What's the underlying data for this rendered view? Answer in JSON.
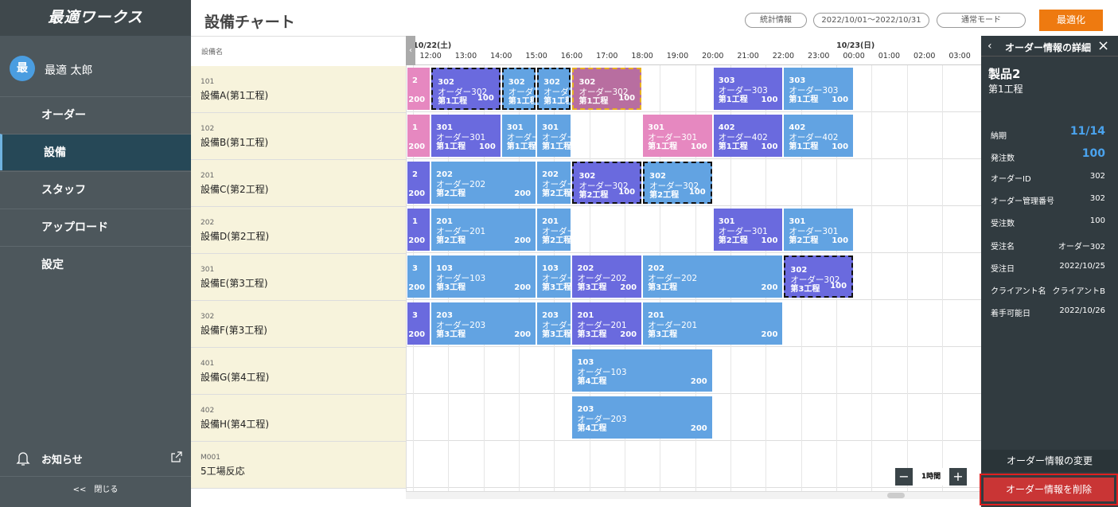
{
  "sidebar": {
    "logo": "最適ワークス",
    "avatar": "最",
    "user": "最適 太郎",
    "menu": [
      "オーダー",
      "設備",
      "スタッフ",
      "アップロード",
      "設定"
    ],
    "notice": "お知らせ",
    "close": "<<　閉じる"
  },
  "header": {
    "title": "設備チャート",
    "buttons": [
      "統計情報",
      "2022/10/01～2022/10/31",
      "通常モード"
    ],
    "optimize": "最適化"
  },
  "chart_data": {
    "type": "gantt",
    "column_header": "設備名",
    "rows": [
      {
        "code": "101",
        "name": "設備A(第1工程)"
      },
      {
        "code": "102",
        "name": "設備B(第1工程)"
      },
      {
        "code": "201",
        "name": "設備C(第2工程)"
      },
      {
        "code": "202",
        "name": "設備D(第2工程)"
      },
      {
        "code": "301",
        "name": "設備E(第3工程)"
      },
      {
        "code": "302",
        "name": "設備F(第3工程)"
      },
      {
        "code": "401",
        "name": "設備G(第4工程)"
      },
      {
        "code": "402",
        "name": "設備H(第4工程)"
      },
      {
        "code": "M001",
        "name": "5工場反応"
      }
    ],
    "xlim": [
      11.32,
      27.63
    ],
    "dates": [
      {
        "value": 12,
        "label": "10/22(土)"
      },
      {
        "value": 24,
        "label": "10/23(日)"
      }
    ],
    "xticks": [
      {
        "value": 12,
        "label": "12:00"
      },
      {
        "value": 13,
        "label": "13:00"
      },
      {
        "value": 14,
        "label": "14:00"
      },
      {
        "value": 15,
        "label": "15:00"
      },
      {
        "value": 16,
        "label": "16:00"
      },
      {
        "value": 17,
        "label": "17:00"
      },
      {
        "value": 18,
        "label": "18:00"
      },
      {
        "value": 19,
        "label": "19:00"
      },
      {
        "value": 20,
        "label": "20:00"
      },
      {
        "value": 21,
        "label": "21:00"
      },
      {
        "value": 22,
        "label": "22:00"
      },
      {
        "value": 23,
        "label": "23:00"
      },
      {
        "value": 24,
        "label": "00:00"
      },
      {
        "value": 25,
        "label": "01:00"
      },
      {
        "value": 26,
        "label": "02:00"
      },
      {
        "value": 27,
        "label": "03:00"
      }
    ],
    "bars": [
      {
        "row": 0,
        "start": 11.32,
        "end": 12,
        "color": "#e688c0",
        "code": "2",
        "qty": 200
      },
      {
        "row": 0,
        "start": 12,
        "end": 14,
        "color": "#6a6ade",
        "border": "#111",
        "code": "302",
        "order": "オーダー302",
        "process": "第1工程",
        "qty": 100
      },
      {
        "row": 0,
        "start": 14,
        "end": 15,
        "color": "#62a3e2",
        "border": "#111",
        "code": "302",
        "order": "オーダー302",
        "process": "第1工程"
      },
      {
        "row": 0,
        "start": 15,
        "end": 16,
        "color": "#62a3e2",
        "border": "#111",
        "code": "302",
        "order": "オーダー302",
        "process": "第1工程"
      },
      {
        "row": 0,
        "start": 16,
        "end": 18,
        "color": "#b86ea0",
        "border": "#e8b020",
        "code": "302",
        "order": "オーダー302",
        "process": "第1工程",
        "qty": 100
      },
      {
        "row": 0,
        "start": 20,
        "end": 22,
        "color": "#6a6ade",
        "code": "303",
        "order": "オーダー303",
        "process": "第1工程",
        "qty": 100
      },
      {
        "row": 0,
        "start": 22,
        "end": 24,
        "color": "#62a3e2",
        "code": "303",
        "order": "オーダー303",
        "process": "第1工程",
        "qty": 100
      },
      {
        "row": 1,
        "start": 11.32,
        "end": 12,
        "color": "#e688c0",
        "code": "1",
        "qty": 200
      },
      {
        "row": 1,
        "start": 12,
        "end": 14,
        "color": "#6a6ade",
        "code": "301",
        "order": "オーダー301",
        "process": "第1工程",
        "qty": 100
      },
      {
        "row": 1,
        "start": 14,
        "end": 15,
        "color": "#62a3e2",
        "code": "301",
        "order": "オーダー301",
        "process": "第1工程"
      },
      {
        "row": 1,
        "start": 15,
        "end": 16,
        "color": "#62a3e2",
        "code": "301",
        "order": "オーダー301",
        "process": "第1工程"
      },
      {
        "row": 1,
        "start": 18,
        "end": 20,
        "color": "#e688c0",
        "code": "301",
        "order": "オーダー301",
        "process": "第1工程",
        "qty": 100
      },
      {
        "row": 1,
        "start": 20,
        "end": 22,
        "color": "#6a6ade",
        "code": "402",
        "order": "オーダー402",
        "process": "第1工程",
        "qty": 100
      },
      {
        "row": 1,
        "start": 22,
        "end": 24,
        "color": "#62a3e2",
        "code": "402",
        "order": "オーダー402",
        "process": "第1工程",
        "qty": 100
      },
      {
        "row": 2,
        "start": 11.32,
        "end": 12,
        "color": "#6a6ade",
        "code": "2",
        "qty": 200
      },
      {
        "row": 2,
        "start": 12,
        "end": 15,
        "color": "#62a3e2",
        "code": "202",
        "order": "オーダー202",
        "process": "第2工程",
        "qty": 200
      },
      {
        "row": 2,
        "start": 15,
        "end": 16,
        "color": "#62a3e2",
        "code": "202",
        "order": "オーダー202",
        "process": "第2工程"
      },
      {
        "row": 2,
        "start": 16,
        "end": 18,
        "color": "#6a6ade",
        "border": "#111",
        "code": "302",
        "order": "オーダー302",
        "process": "第2工程",
        "qty": 100
      },
      {
        "row": 2,
        "start": 18,
        "end": 20,
        "color": "#62a3e2",
        "border": "#111",
        "code": "302",
        "order": "オーダー302",
        "process": "第2工程",
        "qty": 100
      },
      {
        "row": 3,
        "start": 11.32,
        "end": 12,
        "color": "#6a6ade",
        "code": "1",
        "qty": 200
      },
      {
        "row": 3,
        "start": 12,
        "end": 15,
        "color": "#62a3e2",
        "code": "201",
        "order": "オーダー201",
        "process": "第2工程",
        "qty": 200
      },
      {
        "row": 3,
        "start": 15,
        "end": 16,
        "color": "#62a3e2",
        "code": "201",
        "order": "オーダー201",
        "process": "第2工程"
      },
      {
        "row": 3,
        "start": 20,
        "end": 22,
        "color": "#6a6ade",
        "code": "301",
        "order": "オーダー301",
        "process": "第2工程",
        "qty": 100
      },
      {
        "row": 3,
        "start": 22,
        "end": 24,
        "color": "#62a3e2",
        "code": "301",
        "order": "オーダー301",
        "process": "第2工程",
        "qty": 100
      },
      {
        "row": 4,
        "start": 11.32,
        "end": 12,
        "color": "#62a3e2",
        "code": "3",
        "qty": 200
      },
      {
        "row": 4,
        "start": 12,
        "end": 15,
        "color": "#62a3e2",
        "code": "103",
        "order": "オーダー103",
        "process": "第3工程",
        "qty": 200
      },
      {
        "row": 4,
        "start": 15,
        "end": 16,
        "color": "#62a3e2",
        "code": "103",
        "order": "オーダー103",
        "process": "第3工程"
      },
      {
        "row": 4,
        "start": 16,
        "end": 18,
        "color": "#6a6ade",
        "code": "202",
        "order": "オーダー202",
        "process": "第3工程",
        "qty": 200
      },
      {
        "row": 4,
        "start": 18,
        "end": 22,
        "color": "#62a3e2",
        "code": "202",
        "order": "オーダー202",
        "process": "第3工程",
        "qty": 200
      },
      {
        "row": 4,
        "start": 22,
        "end": 24,
        "color": "#6a6ade",
        "border": "#111",
        "code": "302",
        "order": "オーダー302",
        "process": "第3工程",
        "qty": 100
      },
      {
        "row": 5,
        "start": 11.32,
        "end": 12,
        "color": "#6a6ade",
        "code": "3",
        "qty": 200
      },
      {
        "row": 5,
        "start": 12,
        "end": 15,
        "color": "#62a3e2",
        "code": "203",
        "order": "オーダー203",
        "process": "第3工程",
        "qty": 200
      },
      {
        "row": 5,
        "start": 15,
        "end": 16,
        "color": "#62a3e2",
        "code": "203",
        "order": "オーダー203",
        "process": "第3工程"
      },
      {
        "row": 5,
        "start": 16,
        "end": 18,
        "color": "#6a6ade",
        "code": "201",
        "order": "オーダー201",
        "process": "第3工程",
        "qty": 200
      },
      {
        "row": 5,
        "start": 18,
        "end": 22,
        "color": "#62a3e2",
        "code": "201",
        "order": "オーダー201",
        "process": "第3工程",
        "qty": 200
      },
      {
        "row": 6,
        "start": 16,
        "end": 20,
        "color": "#62a3e2",
        "code": "103",
        "order": "オーダー103",
        "process": "第4工程",
        "qty": 200
      },
      {
        "row": 7,
        "start": 16,
        "end": 20,
        "color": "#62a3e2",
        "code": "203",
        "order": "オーダー203",
        "process": "第4工程",
        "qty": 200
      }
    ],
    "zoom": "1時間"
  },
  "detail": {
    "header": "オーダー情報の詳細",
    "product": "製品2",
    "process": "第1工程",
    "fields": [
      [
        "納期",
        "11/14"
      ],
      [
        "発注数",
        "100"
      ],
      [
        "オーダーID",
        "302"
      ],
      [
        "オーダー管理番号",
        "302"
      ],
      [
        "受注数",
        "100"
      ],
      [
        "受注名",
        "オーダー302"
      ],
      [
        "受注日",
        "2022/10/25"
      ],
      [
        "クライアント名",
        "クライアントB"
      ],
      [
        "着手可能日",
        "2022/10/26"
      ]
    ],
    "edit": "オーダー情報の変更",
    "delete": "オーダー情報を削除"
  }
}
